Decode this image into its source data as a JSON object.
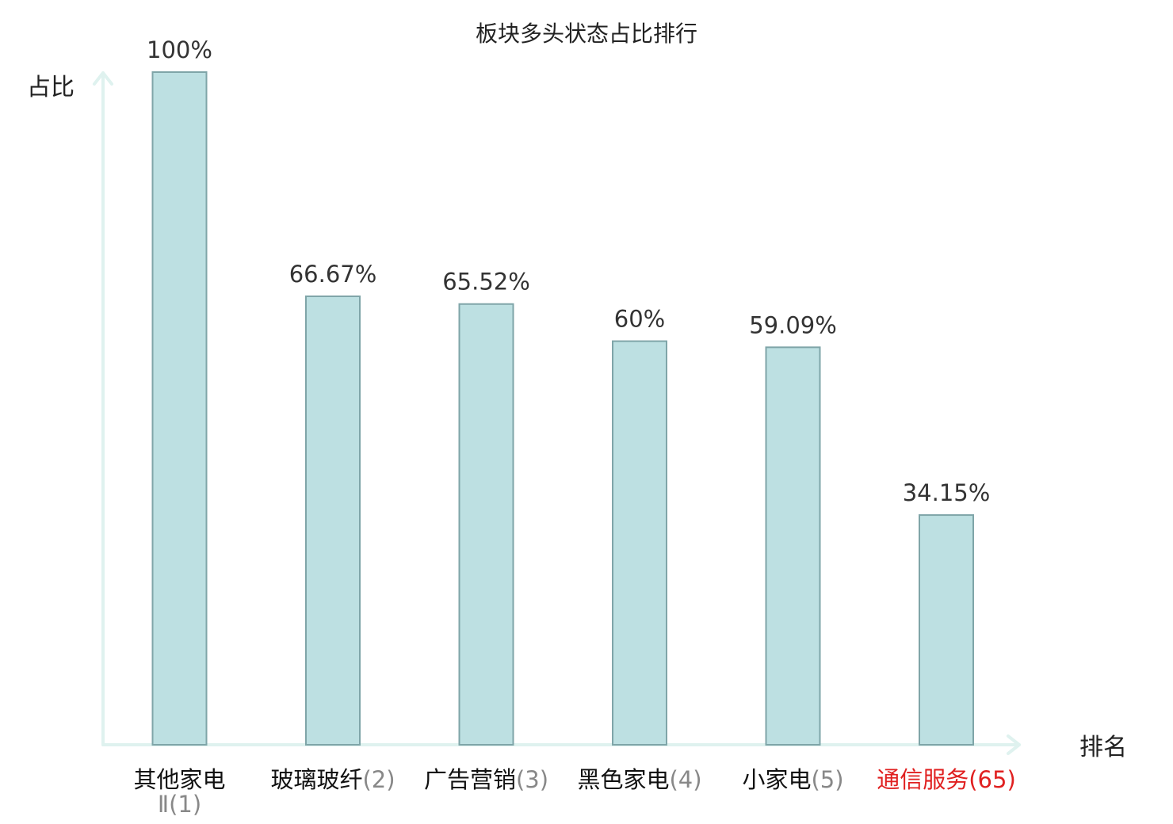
{
  "chart_data": {
    "type": "bar",
    "title": "板块多头状态占比排行",
    "ylabel": "占比",
    "xlabel": "排名",
    "ylim": [
      0,
      100
    ],
    "grid": false,
    "categories": [
      {
        "name": "其他家电",
        "rank_line": "Ⅱ",
        "rank": "(1)",
        "highlight": false
      },
      {
        "name": "玻璃玻纤",
        "rank_line": "",
        "rank": "(2)",
        "highlight": false
      },
      {
        "name": "广告营销",
        "rank_line": "",
        "rank": "(3)",
        "highlight": false
      },
      {
        "name": "黑色家电",
        "rank_line": "",
        "rank": "(4)",
        "highlight": false
      },
      {
        "name": "小家电",
        "rank_line": "",
        "rank": "(5)",
        "highlight": false
      },
      {
        "name": "通信服务",
        "rank_line": "",
        "rank": "(65)",
        "highlight": true
      }
    ],
    "values": [
      100,
      66.67,
      65.52,
      60,
      59.09,
      34.15
    ],
    "value_labels": [
      "100%",
      "66.67%",
      "65.52%",
      "60%",
      "59.09%",
      "34.15%"
    ],
    "colors": {
      "bar_fill": "#bde0e2",
      "bar_stroke": "#7fa5a8",
      "axis": "#dff2ef",
      "highlight": "#e02020",
      "category_name": "#111111",
      "category_rank": "#888888"
    }
  }
}
